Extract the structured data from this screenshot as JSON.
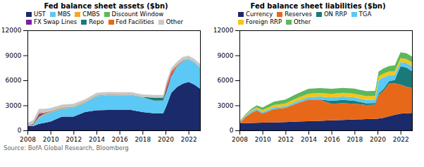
{
  "chart_data": [
    {
      "type": "area",
      "stacked": true,
      "title": "Fed balance sheet assets ($bn)",
      "annotations": [
        "Source: BofA Global Research, Bloomberg"
      ],
      "legend": "upper left",
      "x": [
        2008.0,
        2008.5,
        2009.0,
        2009.5,
        2010.0,
        2011.0,
        2012.0,
        2013.0,
        2014.0,
        2015.0,
        2016.0,
        2017.0,
        2018.0,
        2019.0,
        2019.8,
        2020.1,
        2020.5,
        2021.0,
        2021.5,
        2022.0,
        2022.5,
        2023.0
      ],
      "series": [
        {
          "name": "UST",
          "color": "#1b2a6b",
          "values": [
            500,
            500,
            780,
            900,
            1050,
            1650,
            1650,
            2200,
            2400,
            2460,
            2460,
            2460,
            2200,
            2050,
            2050,
            3000,
            4500,
            5200,
            5600,
            5800,
            5500,
            5000
          ]
        },
        {
          "name": "MBS",
          "color": "#5bc8f5",
          "values": [
            0,
            50,
            700,
            1000,
            1100,
            950,
            1100,
            1100,
            1700,
            1750,
            1750,
            1750,
            1750,
            1500,
            1500,
            1500,
            1900,
            2400,
            2700,
            2700,
            2650,
            2550
          ]
        },
        {
          "name": "CMBS",
          "color": "#f5a623",
          "values": [
            0,
            10,
            60,
            80,
            80,
            80,
            70,
            60,
            50,
            40,
            30,
            20,
            10,
            10,
            10,
            10,
            10,
            10,
            5,
            5,
            5,
            5
          ]
        },
        {
          "name": "Discount Window",
          "color": "#5cb85c",
          "values": [
            0,
            150,
            120,
            30,
            20,
            10,
            5,
            5,
            5,
            5,
            5,
            5,
            5,
            5,
            5,
            200,
            100,
            50,
            20,
            10,
            5,
            5
          ]
        },
        {
          "name": "FX Swap Lines",
          "color": "#7b1fa2",
          "values": [
            0,
            80,
            250,
            60,
            10,
            10,
            10,
            10,
            10,
            10,
            10,
            10,
            10,
            10,
            10,
            350,
            200,
            50,
            15,
            10,
            5,
            5
          ]
        },
        {
          "name": "Repo",
          "color": "#1a7a7a",
          "values": [
            0,
            10,
            30,
            20,
            20,
            20,
            20,
            20,
            20,
            20,
            20,
            20,
            20,
            350,
            350,
            80,
            30,
            20,
            10,
            10,
            5,
            5
          ]
        },
        {
          "name": "Fed Facilities",
          "color": "#e8681a",
          "values": [
            0,
            30,
            150,
            60,
            20,
            10,
            5,
            5,
            5,
            5,
            5,
            5,
            5,
            5,
            5,
            400,
            350,
            100,
            50,
            30,
            10,
            5
          ]
        },
        {
          "name": "Other",
          "color": "#c8c8c8",
          "values": [
            380,
            400,
            480,
            420,
            380,
            350,
            320,
            310,
            310,
            310,
            310,
            310,
            310,
            310,
            310,
            380,
            380,
            400,
            400,
            400,
            400,
            400
          ]
        }
      ],
      "xlim": [
        2008,
        2023
      ],
      "xticks": [
        2008,
        2010,
        2012,
        2014,
        2016,
        2018,
        2020,
        2022
      ],
      "ylim": [
        0,
        12000
      ],
      "yticks": [
        0,
        3000,
        6000,
        9000,
        12000
      ]
    },
    {
      "type": "area",
      "stacked": true,
      "title": "Fed balance sheet liabilities ($bn)",
      "legend": "upper left",
      "x": [
        2008.0,
        2008.5,
        2009.0,
        2009.5,
        2010.0,
        2011.0,
        2012.0,
        2013.0,
        2014.0,
        2015.0,
        2016.0,
        2017.0,
        2018.0,
        2019.0,
        2019.8,
        2020.1,
        2020.5,
        2021.0,
        2021.5,
        2022.0,
        2022.5,
        2023.0
      ],
      "series": [
        {
          "name": "Currency",
          "color": "#1b2a6b",
          "values": [
            850,
            860,
            880,
            900,
            920,
            960,
            1000,
            1050,
            1100,
            1150,
            1200,
            1250,
            1300,
            1350,
            1380,
            1420,
            1500,
            1700,
            1850,
            2000,
            2050,
            2100
          ]
        },
        {
          "name": "Reserves",
          "color": "#e8681a",
          "values": [
            0,
            700,
            1200,
            1500,
            1100,
            1600,
            1700,
            2200,
            2600,
            2500,
            2000,
            2000,
            1900,
            1700,
            1700,
            2800,
            3200,
            3900,
            3800,
            3500,
            3200,
            3000
          ]
        },
        {
          "name": "ON RRP",
          "color": "#1a7a7a",
          "values": [
            0,
            0,
            0,
            0,
            0,
            0,
            0,
            0,
            0,
            50,
            350,
            400,
            350,
            200,
            200,
            200,
            250,
            300,
            400,
            2200,
            2300,
            2000
          ]
        },
        {
          "name": "TGA",
          "color": "#5bc8f5",
          "values": [
            100,
            130,
            200,
            200,
            200,
            200,
            200,
            250,
            300,
            350,
            400,
            400,
            400,
            400,
            400,
            1600,
            1400,
            700,
            600,
            500,
            550,
            600
          ]
        },
        {
          "name": "Foreign RRP",
          "color": "#f5c518",
          "values": [
            50,
            70,
            100,
            150,
            200,
            280,
            330,
            360,
            400,
            420,
            430,
            440,
            450,
            455,
            455,
            445,
            450,
            455,
            458,
            460,
            462,
            462
          ]
        },
        {
          "name": "Other",
          "color": "#5cb85c",
          "values": [
            80,
            130,
            180,
            250,
            320,
            400,
            470,
            530,
            580,
            600,
            600,
            600,
            600,
            600,
            600,
            600,
            620,
            660,
            680,
            700,
            700,
            700
          ]
        }
      ],
      "xlim": [
        2008,
        2023
      ],
      "xticks": [
        2008,
        2010,
        2012,
        2014,
        2016,
        2018,
        2020,
        2022
      ],
      "ylim": [
        0,
        12000
      ],
      "yticks": [
        0,
        3000,
        6000,
        9000,
        12000
      ]
    }
  ]
}
